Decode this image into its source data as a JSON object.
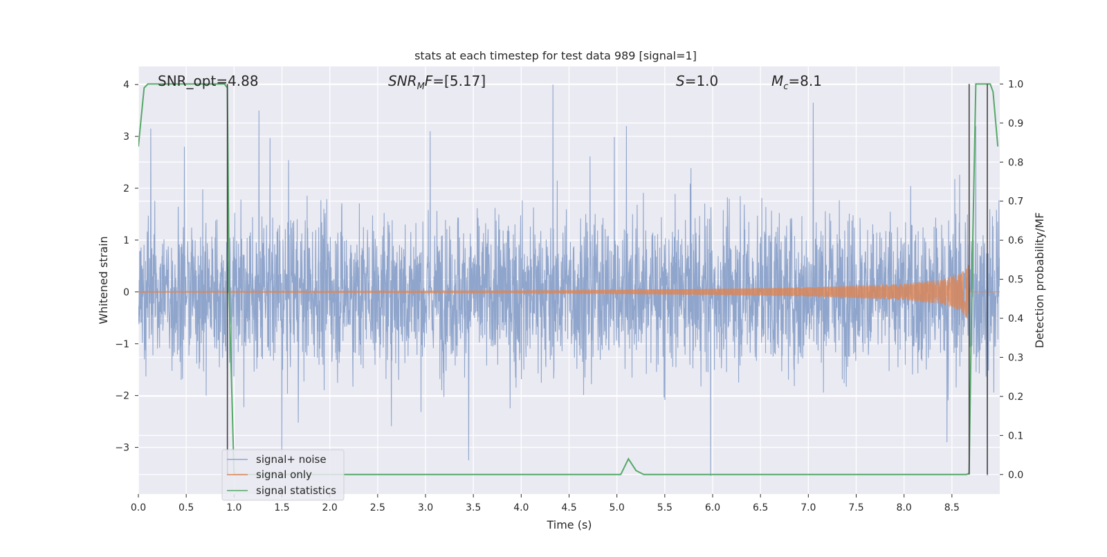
{
  "chart_data": {
    "type": "line",
    "title": "stats at each timestep for test data 989 [signal=1]",
    "xlabel": "Time (s)",
    "ylabel_left": "Whitened strain",
    "ylabel_right": "Detection probability/MF",
    "xlim": [
      0.0,
      9.0
    ],
    "ylim_left": [
      -3.9,
      4.35
    ],
    "ylim_right": [
      -0.05,
      1.045
    ],
    "x_ticks": [
      "0.0",
      "0.5",
      "1.0",
      "1.5",
      "2.0",
      "2.5",
      "3.0",
      "3.5",
      "4.0",
      "4.5",
      "5.0",
      "5.5",
      "6.0",
      "6.5",
      "7.0",
      "7.5",
      "8.0",
      "8.5"
    ],
    "x_tick_values": [
      0.0,
      0.5,
      1.0,
      1.5,
      2.0,
      2.5,
      3.0,
      3.5,
      4.0,
      4.5,
      5.0,
      5.5,
      6.0,
      6.5,
      7.0,
      7.5,
      8.0,
      8.5
    ],
    "y_left_ticks": [
      "4",
      "3",
      "2",
      "1",
      "0",
      "−1",
      "−2",
      "−3"
    ],
    "y_left_tick_values": [
      4,
      3,
      2,
      1,
      0,
      -1,
      -2,
      -3
    ],
    "y_right_ticks": [
      "1.0",
      "0.9",
      "0.8",
      "0.7",
      "0.6",
      "0.5",
      "0.4",
      "0.3",
      "0.2",
      "0.1",
      "0.0"
    ],
    "y_right_tick_values": [
      1.0,
      0.9,
      0.8,
      0.7,
      0.6,
      0.5,
      0.4,
      0.3,
      0.2,
      0.1,
      0.0
    ],
    "grid": true,
    "legend_position": "lower-left",
    "series": [
      {
        "name": "signal+ noise",
        "axis": "left",
        "color": "#8fa5cc",
        "style": "dense noise trace, amplitude ~1.2 typical with spikes to about +4 / -3.5 over 0–9 s",
        "peaks": [
          {
            "x": 0.13,
            "y": 3.15
          },
          {
            "x": 0.48,
            "y": 2.8
          },
          {
            "x": 1.26,
            "y": 3.5
          },
          {
            "x": 3.05,
            "y": 3.1
          },
          {
            "x": 4.33,
            "y": 4.0
          },
          {
            "x": 5.1,
            "y": 3.2
          },
          {
            "x": 7.05,
            "y": 3.65
          },
          {
            "x": 8.75,
            "y": 3.2
          },
          {
            "x": 1.5,
            "y": -3.3
          },
          {
            "x": 3.45,
            "y": -3.25
          },
          {
            "x": 5.98,
            "y": -3.55
          },
          {
            "x": 8.45,
            "y": -2.9
          },
          {
            "x": 8.87,
            "y": -3.55
          }
        ]
      },
      {
        "name": "signal only",
        "axis": "left",
        "color": "#dd8452",
        "style": "chirp: near zero until ~4.5 s, amplitude growing to about 0.6 at merger near 8.68 s",
        "envelope": [
          {
            "x": 0.0,
            "y": 0.01
          },
          {
            "x": 4.0,
            "y": 0.02
          },
          {
            "x": 5.0,
            "y": 0.04
          },
          {
            "x": 6.0,
            "y": 0.06
          },
          {
            "x": 7.0,
            "y": 0.09
          },
          {
            "x": 8.0,
            "y": 0.16
          },
          {
            "x": 8.4,
            "y": 0.24
          },
          {
            "x": 8.6,
            "y": 0.38
          },
          {
            "x": 8.68,
            "y": 0.58
          }
        ]
      },
      {
        "name": "signal statistics",
        "axis": "right",
        "color": "#55a868",
        "x": [
          0.0,
          0.06,
          0.1,
          0.2,
          0.9,
          0.93,
          0.95,
          1.0,
          1.5,
          5.04,
          5.12,
          5.2,
          5.28,
          8.65,
          8.68,
          8.71,
          8.75,
          8.8,
          8.9,
          8.93,
          8.98
        ],
        "y": [
          0.84,
          0.99,
          1.0,
          1.0,
          1.0,
          0.99,
          0.45,
          0.0,
          0.0,
          0.0,
          0.04,
          0.01,
          0.0,
          0.0,
          0.003,
          0.5,
          1.0,
          1.0,
          1.0,
          0.98,
          0.84
        ]
      }
    ],
    "vertical_markers": [
      {
        "x": 0.93,
        "color": "#404040"
      },
      {
        "x": 8.68,
        "color": "#404040"
      },
      {
        "x": 8.87,
        "color": "#404040"
      }
    ],
    "annotations": [
      {
        "id": "snr_opt",
        "text": "SNR_opt=4.88"
      },
      {
        "id": "snr_mf",
        "label_italic": "SNR",
        "label_sub": "M",
        "label_rest": "F=[5.17]"
      },
      {
        "id": "s_stat",
        "label_italic": "S",
        "label_rest": "=1.0"
      },
      {
        "id": "mc",
        "label_italic": "M",
        "label_sub": "c",
        "label_rest": "=8.1"
      }
    ]
  }
}
